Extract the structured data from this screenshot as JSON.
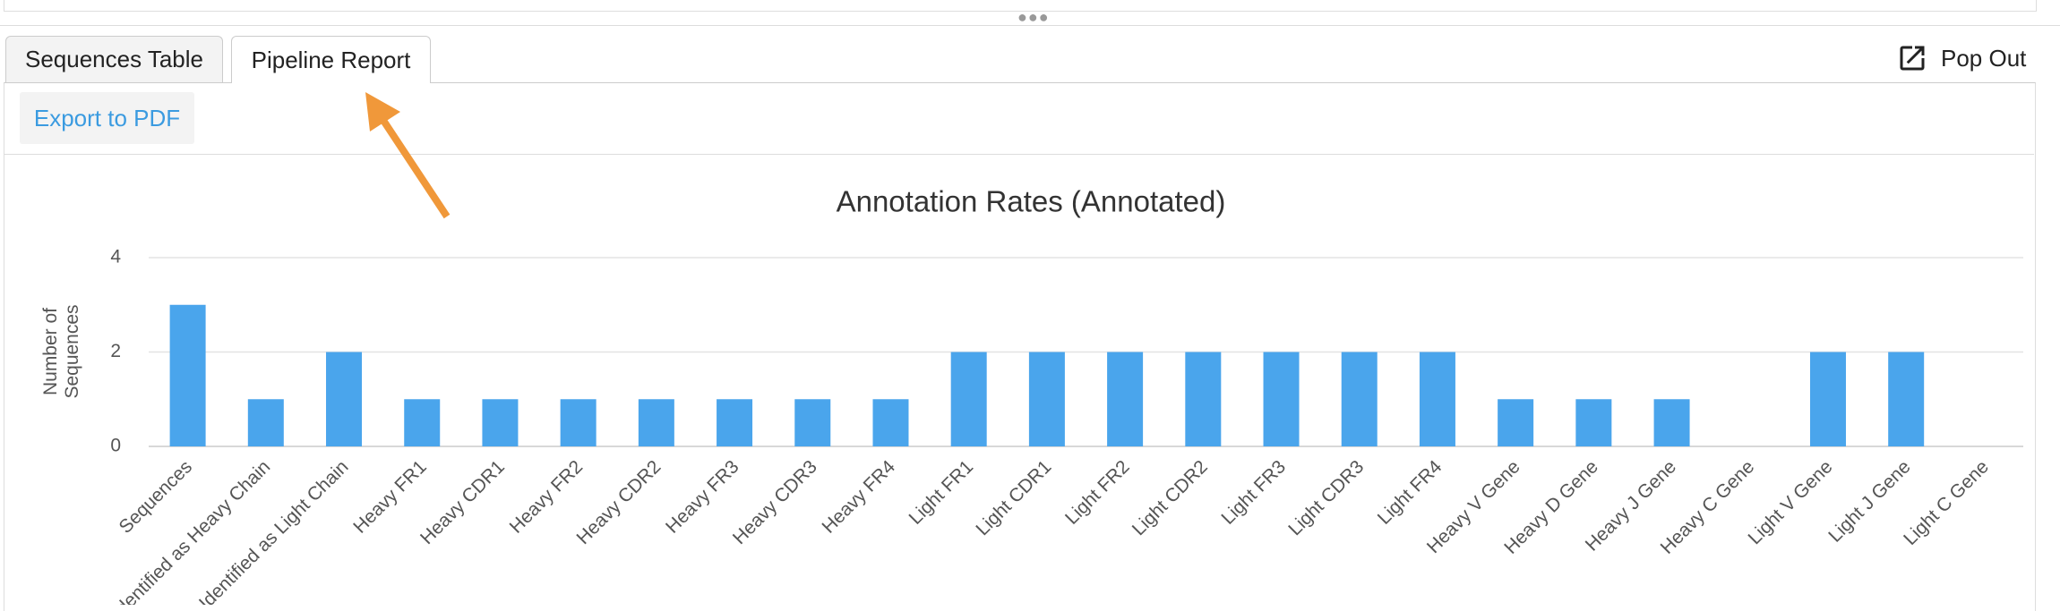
{
  "tabs": [
    "Sequences Table",
    "Pipeline Report"
  ],
  "pop_out": "Pop Out",
  "export_button": "Export to PDF",
  "chart_data": {
    "type": "bar",
    "title": "Annotation Rates (Annotated)",
    "y_label": "Number of Sequences",
    "categories": [
      "Sequences",
      "Identified as Heavy Chain",
      "Identified as Light Chain",
      "Heavy FR1",
      "Heavy CDR1",
      "Heavy FR2",
      "Heavy CDR2",
      "Heavy FR3",
      "Heavy CDR3",
      "Heavy FR4",
      "Light FR1",
      "Light CDR1",
      "Light FR2",
      "Light CDR2",
      "Light FR3",
      "Light CDR3",
      "Light FR4",
      "Heavy V Gene",
      "Heavy D Gene",
      "Heavy J Gene",
      "Heavy C Gene",
      "Light V Gene",
      "Light J Gene",
      "Light C Gene"
    ],
    "values": [
      3,
      1,
      2,
      1,
      1,
      1,
      1,
      1,
      1,
      1,
      2,
      2,
      2,
      2,
      2,
      2,
      2,
      1,
      1,
      1,
      0,
      2,
      2,
      0
    ],
    "color": "#4aa5ec",
    "ylim": [
      0,
      4
    ],
    "yticks": [
      0,
      2,
      4
    ],
    "grid": true
  }
}
